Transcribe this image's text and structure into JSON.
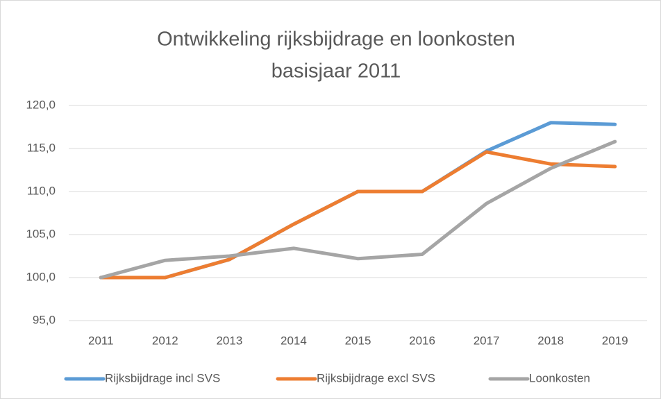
{
  "chart_data": {
    "type": "line",
    "title": "Ontwikkeling  rijksbijdrage en loonkosten",
    "subtitle": "basisjaar 2011",
    "categories": [
      "2011",
      "2012",
      "2013",
      "2014",
      "2015",
      "2016",
      "2017",
      "2018",
      "2019"
    ],
    "series": [
      {
        "name": "Rijksbijdrage incl SVS",
        "color": "#5b9bd5",
        "values": [
          100,
          100,
          102.1,
          106.2,
          110,
          110,
          114.7,
          118.0,
          117.8
        ]
      },
      {
        "name": "Rijksbijdrage excl SVS",
        "color": "#ed7d31",
        "values": [
          100,
          100,
          102.1,
          106.2,
          110,
          110,
          114.6,
          113.2,
          112.9
        ]
      },
      {
        "name": "Loonkosten",
        "color": "#a5a5a5",
        "values": [
          100,
          102.0,
          102.5,
          103.4,
          102.2,
          102.7,
          108.6,
          112.7,
          115.8
        ]
      }
    ],
    "ylim": [
      95,
      120
    ],
    "yticks": [
      {
        "value": 95,
        "label": "95,0"
      },
      {
        "value": 100,
        "label": "100,0"
      },
      {
        "value": 105,
        "label": "105,0"
      },
      {
        "value": 110,
        "label": "110,0"
      },
      {
        "value": 115,
        "label": "115,0"
      },
      {
        "value": 120,
        "label": "120,0"
      }
    ],
    "grid": true,
    "legend": "bottom"
  }
}
